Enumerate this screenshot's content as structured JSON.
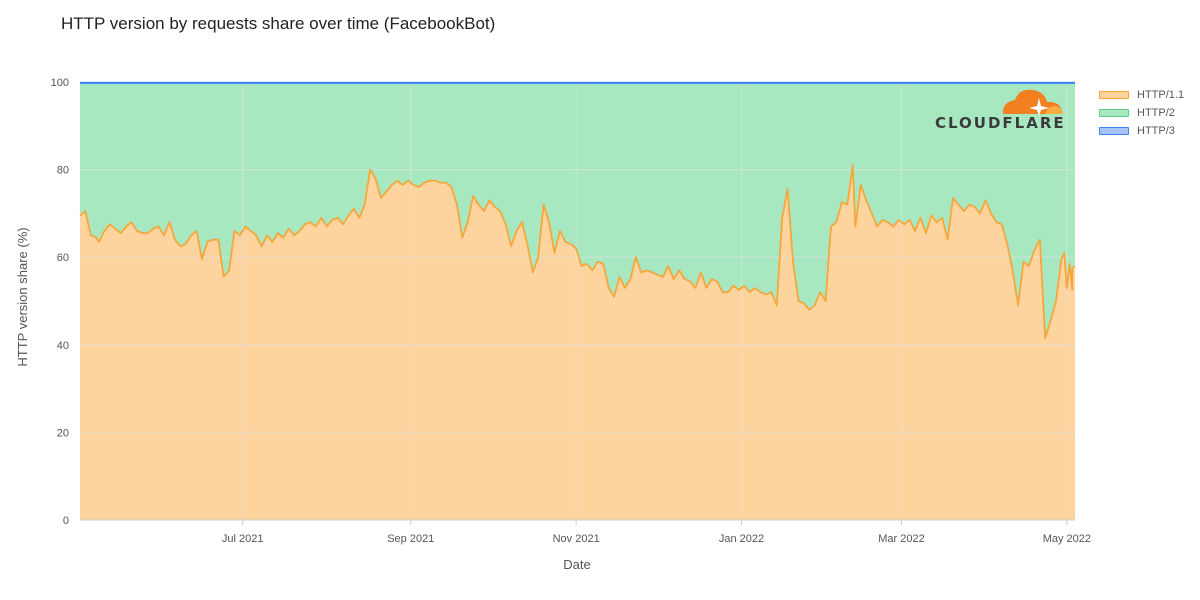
{
  "title": "HTTP version by requests share over time (FacebookBot)",
  "logo": {
    "text": "CLOUDFLARE",
    "color": "#f38020"
  },
  "colors": {
    "http11_fill": "#fdd49e",
    "http11_line": "#f6a73c",
    "http2_fill": "#a8e8c1",
    "http3_line": "#3b82f6",
    "grid": "#e3e3e3"
  },
  "chart_data": {
    "type": "area",
    "stacked": true,
    "title": "HTTP version by requests share over time (FacebookBot)",
    "xlabel": "Date",
    "ylabel": "HTTP version share (%)",
    "ylim": [
      0,
      100
    ],
    "yticks": [
      0,
      20,
      40,
      60,
      80,
      100
    ],
    "xlim": [
      "2021-05-02",
      "2022-05-04"
    ],
    "xticks": [
      {
        "date": "2021-07-01",
        "label": "Jul 2021"
      },
      {
        "date": "2021-09-01",
        "label": "Sep 2021"
      },
      {
        "date": "2021-11-01",
        "label": "Nov 2021"
      },
      {
        "date": "2022-01-01",
        "label": "Jan 2022"
      },
      {
        "date": "2022-03-01",
        "label": "Mar 2022"
      },
      {
        "date": "2022-05-01",
        "label": "May 2022"
      }
    ],
    "grid": true,
    "legend_position": "right",
    "series": [
      {
        "name": "HTTP/1.1",
        "points": [
          [
            "2021-05-02",
            69.5
          ],
          [
            "2021-05-04",
            70.5
          ],
          [
            "2021-05-06",
            65
          ],
          [
            "2021-05-08",
            64.5
          ],
          [
            "2021-05-09",
            63.5
          ],
          [
            "2021-05-11",
            66
          ],
          [
            "2021-05-13",
            67.5
          ],
          [
            "2021-05-15",
            66.5
          ],
          [
            "2021-05-17",
            65.5
          ],
          [
            "2021-05-19",
            67
          ],
          [
            "2021-05-21",
            68
          ],
          [
            "2021-05-23",
            66
          ],
          [
            "2021-05-25",
            65.5
          ],
          [
            "2021-05-27",
            65.5
          ],
          [
            "2021-05-29",
            66.5
          ],
          [
            "2021-05-31",
            67
          ],
          [
            "2021-06-02",
            65
          ],
          [
            "2021-06-04",
            68
          ],
          [
            "2021-06-06",
            64
          ],
          [
            "2021-06-08",
            62.5
          ],
          [
            "2021-06-10",
            63
          ],
          [
            "2021-06-12",
            65
          ],
          [
            "2021-06-14",
            66
          ],
          [
            "2021-06-16",
            59.5
          ],
          [
            "2021-06-18",
            63.5
          ],
          [
            "2021-06-20",
            64
          ],
          [
            "2021-06-22",
            64
          ],
          [
            "2021-06-24",
            55.5
          ],
          [
            "2021-06-26",
            57
          ],
          [
            "2021-06-28",
            66
          ],
          [
            "2021-06-30",
            65
          ],
          [
            "2021-07-02",
            67
          ],
          [
            "2021-07-04",
            66
          ],
          [
            "2021-07-06",
            65
          ],
          [
            "2021-07-08",
            62.5
          ],
          [
            "2021-07-10",
            65
          ],
          [
            "2021-07-12",
            63.5
          ],
          [
            "2021-07-14",
            65.5
          ],
          [
            "2021-07-16",
            64.5
          ],
          [
            "2021-07-18",
            66.5
          ],
          [
            "2021-07-20",
            65
          ],
          [
            "2021-07-22",
            66
          ],
          [
            "2021-07-24",
            67.5
          ],
          [
            "2021-07-26",
            68
          ],
          [
            "2021-07-28",
            67
          ],
          [
            "2021-07-30",
            69
          ],
          [
            "2021-08-01",
            67
          ],
          [
            "2021-08-03",
            68.5
          ],
          [
            "2021-08-05",
            69
          ],
          [
            "2021-08-07",
            67.5
          ],
          [
            "2021-08-09",
            69.5
          ],
          [
            "2021-08-11",
            71
          ],
          [
            "2021-08-13",
            69
          ],
          [
            "2021-08-15",
            72
          ],
          [
            "2021-08-17",
            80
          ],
          [
            "2021-08-19",
            78
          ],
          [
            "2021-08-21",
            73.5
          ],
          [
            "2021-08-23",
            75
          ],
          [
            "2021-08-25",
            76.5
          ],
          [
            "2021-08-27",
            77.5
          ],
          [
            "2021-08-29",
            76.5
          ],
          [
            "2021-08-31",
            77.5
          ],
          [
            "2021-09-02",
            76.5
          ],
          [
            "2021-09-04",
            76
          ],
          [
            "2021-09-06",
            77
          ],
          [
            "2021-09-08",
            77.5
          ],
          [
            "2021-09-10",
            77.5
          ],
          [
            "2021-09-12",
            77
          ],
          [
            "2021-09-14",
            77
          ],
          [
            "2021-09-16",
            76
          ],
          [
            "2021-09-18",
            72
          ],
          [
            "2021-09-20",
            64.5
          ],
          [
            "2021-09-22",
            68
          ],
          [
            "2021-09-24",
            74
          ],
          [
            "2021-09-26",
            72
          ],
          [
            "2021-09-28",
            70.5
          ],
          [
            "2021-09-30",
            73
          ],
          [
            "2021-10-02",
            71.5
          ],
          [
            "2021-10-04",
            70.5
          ],
          [
            "2021-10-06",
            67.5
          ],
          [
            "2021-10-08",
            62.5
          ],
          [
            "2021-10-10",
            66
          ],
          [
            "2021-10-12",
            68
          ],
          [
            "2021-10-14",
            63
          ],
          [
            "2021-10-16",
            56.5
          ],
          [
            "2021-10-18",
            60
          ],
          [
            "2021-10-20",
            72
          ],
          [
            "2021-10-22",
            68
          ],
          [
            "2021-10-24",
            61
          ],
          [
            "2021-10-26",
            66
          ],
          [
            "2021-10-28",
            63.5
          ],
          [
            "2021-10-30",
            63
          ],
          [
            "2021-11-01",
            62
          ],
          [
            "2021-11-03",
            58
          ],
          [
            "2021-11-05",
            58.5
          ],
          [
            "2021-11-07",
            57
          ],
          [
            "2021-11-09",
            59
          ],
          [
            "2021-11-11",
            58.5
          ],
          [
            "2021-11-13",
            53
          ],
          [
            "2021-11-15",
            51
          ],
          [
            "2021-11-17",
            55.5
          ],
          [
            "2021-11-19",
            53
          ],
          [
            "2021-11-21",
            55
          ],
          [
            "2021-11-23",
            60
          ],
          [
            "2021-11-25",
            56.5
          ],
          [
            "2021-11-27",
            57
          ],
          [
            "2021-11-29",
            56.5
          ],
          [
            "2021-12-01",
            56
          ],
          [
            "2021-12-03",
            55.5
          ],
          [
            "2021-12-05",
            58
          ],
          [
            "2021-12-07",
            55
          ],
          [
            "2021-12-09",
            57
          ],
          [
            "2021-12-11",
            55
          ],
          [
            "2021-12-13",
            54.5
          ],
          [
            "2021-12-15",
            53
          ],
          [
            "2021-12-17",
            56.5
          ],
          [
            "2021-12-19",
            53
          ],
          [
            "2021-12-21",
            55
          ],
          [
            "2021-12-23",
            54.5
          ],
          [
            "2021-12-25",
            52
          ],
          [
            "2021-12-27",
            52
          ],
          [
            "2021-12-29",
            53.5
          ],
          [
            "2021-12-31",
            52.5
          ],
          [
            "2022-01-02",
            53.5
          ],
          [
            "2022-01-04",
            52
          ],
          [
            "2022-01-06",
            53
          ],
          [
            "2022-01-08",
            52
          ],
          [
            "2022-01-10",
            51.5
          ],
          [
            "2022-01-12",
            52
          ],
          [
            "2022-01-14",
            49
          ],
          [
            "2022-01-16",
            69
          ],
          [
            "2022-01-18",
            75.5
          ],
          [
            "2022-01-20",
            59
          ],
          [
            "2022-01-22",
            50
          ],
          [
            "2022-01-24",
            49.5
          ],
          [
            "2022-01-26",
            48
          ],
          [
            "2022-01-28",
            49
          ],
          [
            "2022-01-30",
            52
          ],
          [
            "2022-02-01",
            50
          ],
          [
            "2022-02-03",
            67
          ],
          [
            "2022-02-05",
            68
          ],
          [
            "2022-02-07",
            72.5
          ],
          [
            "2022-02-09",
            72
          ],
          [
            "2022-02-11",
            81
          ],
          [
            "2022-02-12",
            67
          ],
          [
            "2022-02-14",
            76.5
          ],
          [
            "2022-02-16",
            73
          ],
          [
            "2022-02-18",
            70
          ],
          [
            "2022-02-20",
            67
          ],
          [
            "2022-02-22",
            68.5
          ],
          [
            "2022-02-24",
            68
          ],
          [
            "2022-02-26",
            67
          ],
          [
            "2022-02-28",
            68.5
          ],
          [
            "2022-03-02",
            67.5
          ],
          [
            "2022-03-04",
            68.5
          ],
          [
            "2022-03-06",
            66
          ],
          [
            "2022-03-08",
            69
          ],
          [
            "2022-03-10",
            65.5
          ],
          [
            "2022-03-12",
            69.5
          ],
          [
            "2022-03-14",
            68
          ],
          [
            "2022-03-16",
            69
          ],
          [
            "2022-03-18",
            64
          ],
          [
            "2022-03-20",
            73.5
          ],
          [
            "2022-03-22",
            72
          ],
          [
            "2022-03-24",
            70.5
          ],
          [
            "2022-03-26",
            72
          ],
          [
            "2022-03-28",
            71.5
          ],
          [
            "2022-03-30",
            70
          ],
          [
            "2022-04-01",
            73
          ],
          [
            "2022-04-03",
            70
          ],
          [
            "2022-04-05",
            68
          ],
          [
            "2022-04-07",
            67.5
          ],
          [
            "2022-04-09",
            63
          ],
          [
            "2022-04-11",
            57
          ],
          [
            "2022-04-13",
            49
          ],
          [
            "2022-04-15",
            59
          ],
          [
            "2022-04-17",
            58
          ],
          [
            "2022-04-19",
            61.5
          ],
          [
            "2022-04-21",
            64
          ],
          [
            "2022-04-23",
            41.5
          ],
          [
            "2022-04-25",
            45.5
          ],
          [
            "2022-04-27",
            50
          ],
          [
            "2022-04-29",
            59.5
          ],
          [
            "2022-04-30",
            61
          ],
          [
            "2022-05-01",
            53
          ],
          [
            "2022-05-02",
            58.5
          ],
          [
            "2022-05-03",
            52.5
          ],
          [
            "2022-05-03",
            57.5
          ],
          [
            "2022-05-04",
            58
          ]
        ]
      },
      {
        "name": "HTTP/2",
        "fill_to": 99.8
      },
      {
        "name": "HTTP/3",
        "value": 0.2
      }
    ]
  }
}
